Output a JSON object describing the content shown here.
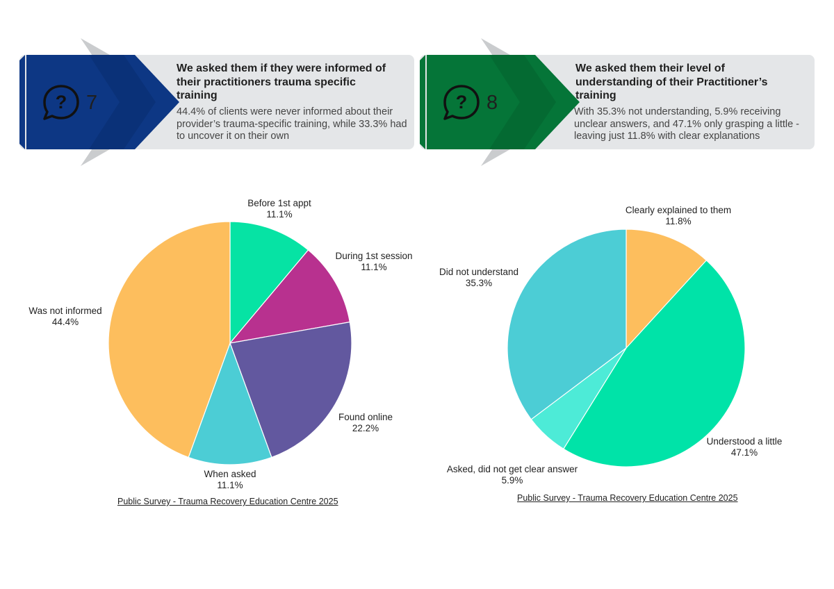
{
  "panels": [
    {
      "number": "7",
      "title": "We asked them if they were informed of their practitioners trauma specific training",
      "description": "44.4% of clients were never informed about their provider’s trauma-specific training, while 33.3% had to uncover it on their own",
      "color": "#0d3784",
      "icon": "question-bubble-icon"
    },
    {
      "number": "8",
      "title": "We asked them their level of understanding of their Practitioner’s training",
      "description": "With 35.3% not understanding, 5.9% receiving unclear answers, and 47.1% only grasping a little - leaving just 11.8% with clear explanations",
      "color": "#057538",
      "icon": "question-bubble-icon"
    }
  ],
  "chart_data": [
    {
      "type": "pie",
      "categories": [
        "Before 1st appt",
        "During 1st session",
        "Found online",
        "When asked",
        "Was not informed"
      ],
      "values": [
        11.1,
        11.1,
        22.2,
        11.1,
        44.4
      ],
      "value_labels": [
        "11.1%",
        "11.1%",
        "22.2%",
        "11.1%",
        "44.4%"
      ],
      "colors": [
        "#06e3a4",
        "#b8318f",
        "#62589f",
        "#4ccdd5",
        "#fdbe5d"
      ],
      "source": "Public Survey - Trauma Recovery Education Centre 2025"
    },
    {
      "type": "pie",
      "categories": [
        "Clearly explained to them",
        "Understood a little",
        "Asked, did not get clear answer",
        "Did not understand"
      ],
      "values": [
        11.8,
        47.1,
        5.9,
        35.3
      ],
      "value_labels": [
        "11.8%",
        "47.1%",
        "5.9%",
        "35.3%"
      ],
      "colors": [
        "#fdbe5d",
        "#00e3a8",
        "#4debd7",
        "#4ccdd5"
      ],
      "source": "Public Survey - Trauma Recovery Education Centre 2025"
    }
  ]
}
